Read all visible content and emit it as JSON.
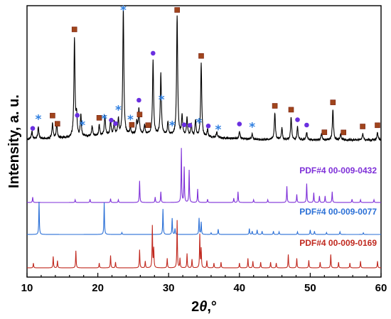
{
  "chart_data": {
    "type": "line",
    "xlabel_symbol": "2",
    "xlabel_italic": "θ",
    "xlabel_unit": ",°",
    "ylabel": "Intensity, a. u.",
    "xlim": [
      10,
      60
    ],
    "x_ticks": [
      10,
      20,
      30,
      40,
      50,
      60
    ],
    "y_ticks_shown": false,
    "grid": false,
    "legend": "none",
    "colors": {
      "sample": "#000000",
      "pdf_0432": "#7e2fd8",
      "pdf_0077": "#2a6fd6",
      "pdf_0169": "#c0281e",
      "marker_square": "#a0451c",
      "marker_circle": "#6a2fe0",
      "marker_star": "#2f7fe0"
    },
    "series": [
      {
        "name": "",
        "key": "sample",
        "peaks": [
          {
            "x": 10.7,
            "y": 0.06
          },
          {
            "x": 11.6,
            "y": 0.1
          },
          {
            "x": 13.6,
            "y": 0.12
          },
          {
            "x": 14.2,
            "y": 0.12
          },
          {
            "x": 16.7,
            "y": 0.78
          },
          {
            "x": 17.0,
            "y": 0.16
          },
          {
            "x": 17.6,
            "y": 0.17
          },
          {
            "x": 19.2,
            "y": 0.08
          },
          {
            "x": 20.2,
            "y": 0.08
          },
          {
            "x": 21.0,
            "y": 0.16
          },
          {
            "x": 21.8,
            "y": 0.11
          },
          {
            "x": 22.3,
            "y": 0.1
          },
          {
            "x": 22.9,
            "y": 0.12
          },
          {
            "x": 23.6,
            "y": 1.0
          },
          {
            "x": 24.6,
            "y": 0.05
          },
          {
            "x": 25.5,
            "y": 0.1
          },
          {
            "x": 25.8,
            "y": 0.2
          },
          {
            "x": 26.6,
            "y": 0.07
          },
          {
            "x": 27.8,
            "y": 0.58
          },
          {
            "x": 28.9,
            "y": 0.48
          },
          {
            "x": 29.9,
            "y": 0.1
          },
          {
            "x": 31.2,
            "y": 0.95
          },
          {
            "x": 31.9,
            "y": 0.16
          },
          {
            "x": 32.6,
            "y": 0.14
          },
          {
            "x": 33.2,
            "y": 0.09
          },
          {
            "x": 33.8,
            "y": 0.13
          },
          {
            "x": 34.6,
            "y": 0.58
          },
          {
            "x": 35.5,
            "y": 0.06
          },
          {
            "x": 36.8,
            "y": 0.05
          },
          {
            "x": 40.0,
            "y": 0.06
          },
          {
            "x": 41.8,
            "y": 0.04
          },
          {
            "x": 45.0,
            "y": 0.21
          },
          {
            "x": 46.0,
            "y": 0.09
          },
          {
            "x": 47.3,
            "y": 0.18
          },
          {
            "x": 48.2,
            "y": 0.1
          },
          {
            "x": 49.5,
            "y": 0.06
          },
          {
            "x": 51.6,
            "y": 0.05
          },
          {
            "x": 53.2,
            "y": 0.24
          },
          {
            "x": 54.3,
            "y": 0.05
          },
          {
            "x": 57.4,
            "y": 0.05
          },
          {
            "x": 59.5,
            "y": 0.06
          }
        ]
      },
      {
        "name": "PDF#4 00-009-0432",
        "key": "pdf_0432",
        "peaks": [
          {
            "x": 10.8,
            "y": 0.1
          },
          {
            "x": 16.8,
            "y": 0.05
          },
          {
            "x": 18.9,
            "y": 0.06
          },
          {
            "x": 21.8,
            "y": 0.07
          },
          {
            "x": 22.9,
            "y": 0.05
          },
          {
            "x": 25.9,
            "y": 0.4
          },
          {
            "x": 28.1,
            "y": 0.1
          },
          {
            "x": 28.9,
            "y": 0.2
          },
          {
            "x": 31.8,
            "y": 1.0
          },
          {
            "x": 32.2,
            "y": 0.65
          },
          {
            "x": 32.9,
            "y": 0.6
          },
          {
            "x": 34.1,
            "y": 0.25
          },
          {
            "x": 35.5,
            "y": 0.06
          },
          {
            "x": 39.2,
            "y": 0.08
          },
          {
            "x": 39.8,
            "y": 0.2
          },
          {
            "x": 42.0,
            "y": 0.05
          },
          {
            "x": 44.0,
            "y": 0.05
          },
          {
            "x": 46.7,
            "y": 0.3
          },
          {
            "x": 48.1,
            "y": 0.15
          },
          {
            "x": 49.5,
            "y": 0.35
          },
          {
            "x": 50.5,
            "y": 0.18
          },
          {
            "x": 51.3,
            "y": 0.12
          },
          {
            "x": 52.1,
            "y": 0.12
          },
          {
            "x": 53.1,
            "y": 0.2
          },
          {
            "x": 55.9,
            "y": 0.06
          },
          {
            "x": 57.1,
            "y": 0.05
          },
          {
            "x": 59.0,
            "y": 0.05
          }
        ]
      },
      {
        "name": "PDF#4 00-009-0077",
        "key": "pdf_0077",
        "peaks": [
          {
            "x": 11.7,
            "y": 1.0
          },
          {
            "x": 20.9,
            "y": 0.98
          },
          {
            "x": 23.4,
            "y": 0.06
          },
          {
            "x": 29.2,
            "y": 0.78
          },
          {
            "x": 30.5,
            "y": 0.5
          },
          {
            "x": 30.9,
            "y": 0.18
          },
          {
            "x": 34.3,
            "y": 0.5
          },
          {
            "x": 34.6,
            "y": 0.38
          },
          {
            "x": 36.0,
            "y": 0.05
          },
          {
            "x": 37.0,
            "y": 0.16
          },
          {
            "x": 41.4,
            "y": 0.18
          },
          {
            "x": 41.8,
            "y": 0.1
          },
          {
            "x": 42.5,
            "y": 0.14
          },
          {
            "x": 43.2,
            "y": 0.1
          },
          {
            "x": 44.8,
            "y": 0.1
          },
          {
            "x": 45.6,
            "y": 0.08
          },
          {
            "x": 48.2,
            "y": 0.08
          },
          {
            "x": 50.0,
            "y": 0.14
          },
          {
            "x": 50.6,
            "y": 0.1
          },
          {
            "x": 52.3,
            "y": 0.06
          },
          {
            "x": 54.2,
            "y": 0.08
          },
          {
            "x": 57.5,
            "y": 0.05
          }
        ]
      },
      {
        "name": "PDF#4 00-009-0169",
        "key": "pdf_0169",
        "peaks": [
          {
            "x": 10.9,
            "y": 0.1
          },
          {
            "x": 13.7,
            "y": 0.24
          },
          {
            "x": 14.3,
            "y": 0.15
          },
          {
            "x": 16.9,
            "y": 0.36
          },
          {
            "x": 20.2,
            "y": 0.1
          },
          {
            "x": 21.8,
            "y": 0.26
          },
          {
            "x": 22.5,
            "y": 0.12
          },
          {
            "x": 25.9,
            "y": 0.38
          },
          {
            "x": 26.7,
            "y": 0.14
          },
          {
            "x": 27.7,
            "y": 0.88
          },
          {
            "x": 27.9,
            "y": 0.4
          },
          {
            "x": 29.8,
            "y": 0.2
          },
          {
            "x": 31.2,
            "y": 1.0
          },
          {
            "x": 31.6,
            "y": 0.2
          },
          {
            "x": 32.6,
            "y": 0.3
          },
          {
            "x": 33.3,
            "y": 0.18
          },
          {
            "x": 34.4,
            "y": 0.7
          },
          {
            "x": 34.6,
            "y": 0.4
          },
          {
            "x": 35.4,
            "y": 0.15
          },
          {
            "x": 36.4,
            "y": 0.1
          },
          {
            "x": 37.4,
            "y": 0.12
          },
          {
            "x": 40.0,
            "y": 0.1
          },
          {
            "x": 41.2,
            "y": 0.2
          },
          {
            "x": 41.9,
            "y": 0.14
          },
          {
            "x": 43.0,
            "y": 0.12
          },
          {
            "x": 44.4,
            "y": 0.12
          },
          {
            "x": 45.2,
            "y": 0.1
          },
          {
            "x": 46.9,
            "y": 0.28
          },
          {
            "x": 48.1,
            "y": 0.2
          },
          {
            "x": 49.8,
            "y": 0.16
          },
          {
            "x": 51.4,
            "y": 0.12
          },
          {
            "x": 52.9,
            "y": 0.28
          },
          {
            "x": 54.0,
            "y": 0.12
          },
          {
            "x": 55.6,
            "y": 0.1
          },
          {
            "x": 57.1,
            "y": 0.14
          },
          {
            "x": 59.5,
            "y": 0.14
          }
        ]
      }
    ],
    "phase_markers": {
      "square": [
        13.6,
        14.3,
        16.7,
        20.2,
        24.8,
        25.9,
        27.1,
        31.2,
        34.6,
        45.0,
        47.3,
        52.0,
        53.2,
        54.7,
        57.4,
        59.5
      ],
      "circle": [
        10.8,
        17.1,
        21.9,
        22.5,
        25.8,
        27.8,
        32.2,
        33.0,
        35.6,
        40.0,
        48.2,
        49.5
      ],
      "star": [
        11.6,
        17.8,
        20.9,
        22.9,
        23.6,
        24.6,
        29.0,
        30.5,
        34.3,
        37.0,
        41.8
      ]
    }
  }
}
